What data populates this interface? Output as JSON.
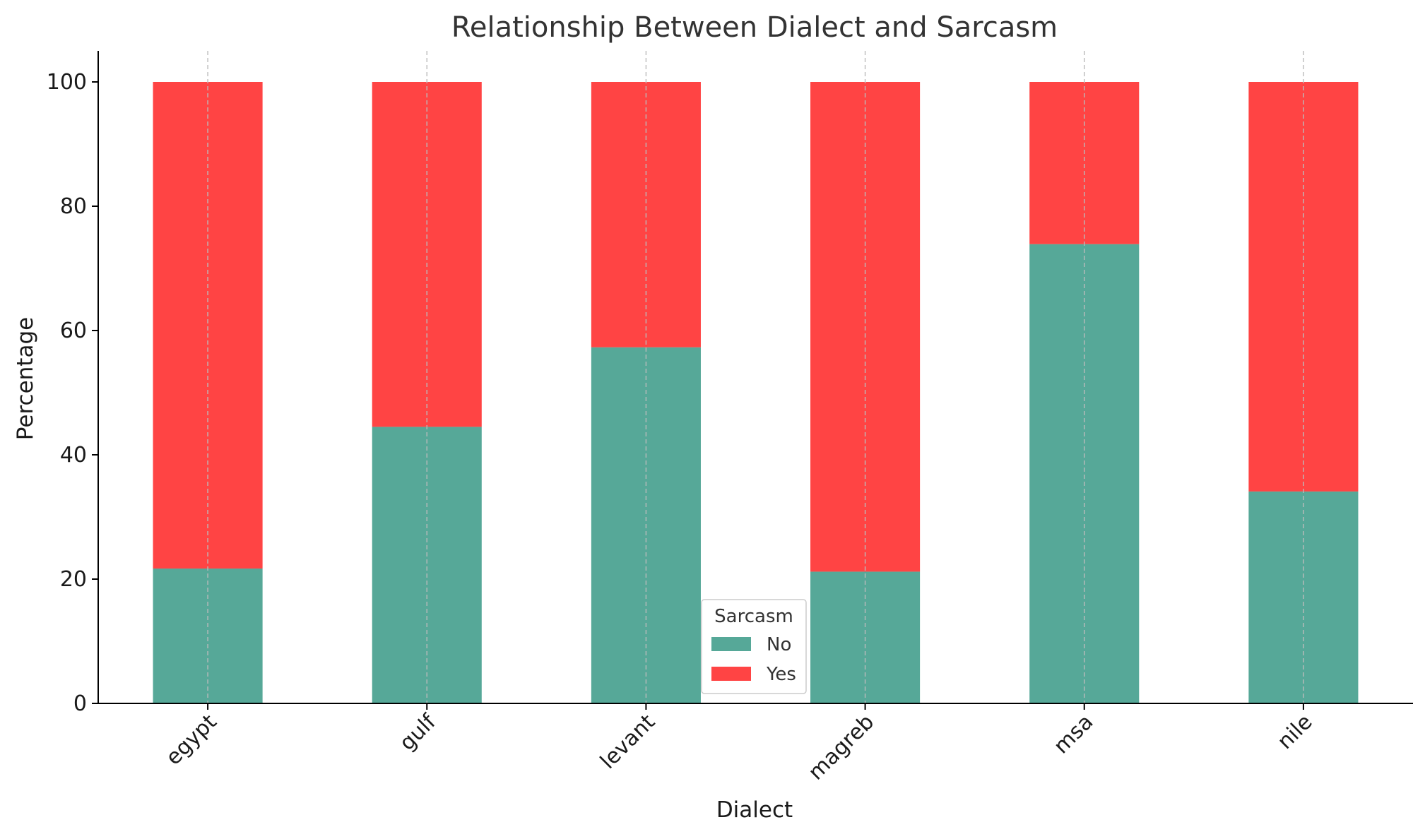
{
  "chart_data": {
    "type": "bar",
    "stacked": true,
    "title": "Relationship Between Dialect and Sarcasm",
    "xlabel": "Dialect",
    "ylabel": "Percentage",
    "categories": [
      "egypt",
      "gulf",
      "levant",
      "magreb",
      "msa",
      "nile"
    ],
    "series": [
      {
        "name": "No",
        "color": "#56a898",
        "values": [
          21.7,
          44.5,
          57.3,
          21.2,
          73.9,
          34.1
        ]
      },
      {
        "name": "Yes",
        "color": "#ff4444",
        "values": [
          78.3,
          55.5,
          42.7,
          78.8,
          26.1,
          65.9
        ]
      }
    ],
    "ylim": [
      0,
      105
    ],
    "yticks": [
      0,
      20,
      40,
      60,
      80,
      100
    ],
    "xtick_rotation": 45,
    "grid": {
      "x": true,
      "y": false,
      "style": "dashed",
      "color": "#bbbbbb"
    },
    "legend": {
      "title": "Sarcasm",
      "position": "lower-center"
    }
  }
}
